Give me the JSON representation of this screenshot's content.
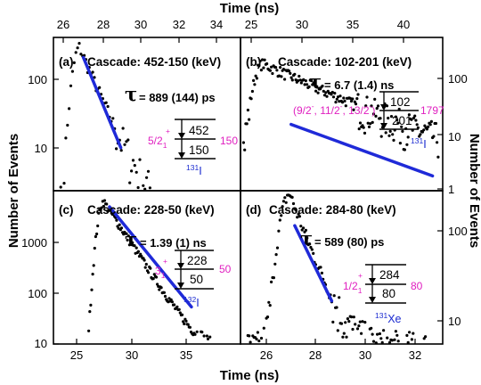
{
  "top_axis_title": "Time (ns)",
  "bottom_axis_title": "Time (ns)",
  "left_axis_title": "Number of Events",
  "right_axis_title": "Number of Events",
  "top_left_ticks": [
    "26",
    "28",
    "30",
    "32",
    "34"
  ],
  "top_right_ticks": [
    "25",
    "30",
    "35",
    "40"
  ],
  "bottom_left_ticks": [
    "25",
    "30",
    "35"
  ],
  "bottom_right_ticks": [
    "26",
    "28",
    "30",
    "32"
  ],
  "chart_data": [
    {
      "panel": "(a)",
      "type": "scatter",
      "cascade": "Cascade: 452-150 (keV)",
      "tau": "τ",
      "tau_value": "= 889 (144) ps",
      "xlim": [
        25,
        35
      ],
      "ylim_log": [
        3,
        150
      ],
      "y_scale": "log",
      "y_ticks": [
        "100",
        "10"
      ],
      "levels": [
        "452",
        "150"
      ],
      "spin": "5/2",
      "spin_sub": "1",
      "spin_sup": "+",
      "level_energy": "150",
      "nucleus_mass": "131",
      "nucleus": "I",
      "fit": {
        "x": [
          26.6,
          28.6
        ],
        "y": [
          90,
          9
        ]
      }
    },
    {
      "panel": "(b)",
      "type": "scatter",
      "cascade": "Cascade: 102-201 (keV)",
      "tau": "τ",
      "tau_value": "= 6.7 (1.4) ns",
      "xlim": [
        24,
        44
      ],
      "ylim_log": [
        1,
        130
      ],
      "y_scale": "log",
      "y_ticks": [
        "100",
        "10",
        "1"
      ],
      "levels": [
        "102",
        "201"
      ],
      "spin": "(9/2",
      "spin2": ", 11/2",
      "spin3": ", 13/2",
      "spin_end": ")",
      "level_energy": "1797",
      "nucleus_mass": "131",
      "nucleus": "I",
      "fit": {
        "x": [
          29,
          43
        ],
        "y": [
          8.2,
          1.6
        ]
      }
    },
    {
      "panel": "(c)",
      "type": "scatter",
      "cascade": "Cascade: 228-50 (keV)",
      "tau": "τ",
      "tau_value": "= 1.39 (1) ns",
      "xlim": [
        22,
        38
      ],
      "ylim_log": [
        10,
        5000
      ],
      "y_scale": "log",
      "y_ticks": [
        "1000",
        "100",
        "10"
      ],
      "levels": [
        "228",
        "50"
      ],
      "spin": "3",
      "spin_sub": "1",
      "spin_sup": "+",
      "level_energy": "50",
      "nucleus_mass": "132",
      "nucleus": "I",
      "fit": {
        "x": [
          26.8,
          33.8
        ],
        "y": [
          2600,
          45
        ]
      }
    },
    {
      "panel": "(d)",
      "type": "scatter",
      "cascade": "Cascade: 284-80 (keV)",
      "tau": "τ",
      "tau_value": "= 589 (80) ps",
      "xlim": [
        24.6,
        32.8
      ],
      "ylim_log": [
        4,
        200
      ],
      "y_scale": "log",
      "y_ticks": [
        "100",
        "10"
      ],
      "levels": [
        "284",
        "80"
      ],
      "spin": "1/2",
      "spin_sub": "1",
      "spin_sup": "+",
      "level_energy": "80",
      "nucleus_mass": "131",
      "nucleus": "Xe",
      "fit": {
        "x": [
          26.8,
          28.3
        ],
        "y": [
          82,
          12
        ]
      }
    }
  ]
}
